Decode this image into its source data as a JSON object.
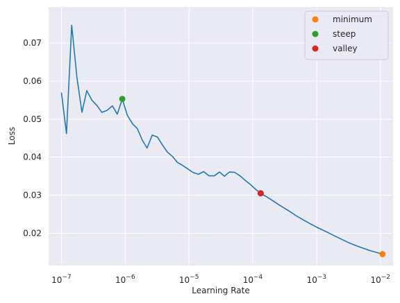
{
  "chart_data": {
    "type": "line",
    "xlabel": "Learning Rate",
    "ylabel": "Loss",
    "xscale": "log",
    "xlim": [
      6.3e-08,
      0.0158
    ],
    "ylim": [
      0.0115,
      0.0795
    ],
    "grid": true,
    "background": "#eaeaf2",
    "line_color": "#1f77b4",
    "x_ticks": [
      {
        "value": 1e-07,
        "base": "10",
        "exp": "−7"
      },
      {
        "value": 1e-06,
        "base": "10",
        "exp": "−6"
      },
      {
        "value": 1e-05,
        "base": "10",
        "exp": "−5"
      },
      {
        "value": 0.0001,
        "base": "10",
        "exp": "−4"
      },
      {
        "value": 0.001,
        "base": "10",
        "exp": "−3"
      },
      {
        "value": 0.01,
        "base": "10",
        "exp": "−2"
      }
    ],
    "y_ticks": [
      {
        "value": 0.02,
        "label": "0.02"
      },
      {
        "value": 0.03,
        "label": "0.03"
      },
      {
        "value": 0.04,
        "label": "0.04"
      },
      {
        "value": 0.05,
        "label": "0.05"
      },
      {
        "value": 0.06,
        "label": "0.06"
      },
      {
        "value": 0.07,
        "label": "0.07"
      }
    ],
    "series": [
      {
        "points": [
          [
            1e-07,
            0.057
          ],
          [
            1.2e-07,
            0.0462
          ],
          [
            1.45e-07,
            0.0747
          ],
          [
            1.75e-07,
            0.061
          ],
          [
            2.1e-07,
            0.0518
          ],
          [
            2.5e-07,
            0.0575
          ],
          [
            3e-07,
            0.055
          ],
          [
            3.6e-07,
            0.0536
          ],
          [
            4.3e-07,
            0.0518
          ],
          [
            5.2e-07,
            0.0523
          ],
          [
            6.3e-07,
            0.0535
          ],
          [
            7.5e-07,
            0.0513
          ],
          [
            9e-07,
            0.0553
          ],
          [
            1.08e-06,
            0.051
          ],
          [
            1.3e-06,
            0.0488
          ],
          [
            1.55e-06,
            0.0475
          ],
          [
            1.85e-06,
            0.0445
          ],
          [
            2.2e-06,
            0.0424
          ],
          [
            2.65e-06,
            0.0458
          ],
          [
            3.2e-06,
            0.0453
          ],
          [
            3.8e-06,
            0.0433
          ],
          [
            4.6e-06,
            0.0413
          ],
          [
            5.5e-06,
            0.0402
          ],
          [
            6.6e-06,
            0.0386
          ],
          [
            8e-06,
            0.0378
          ],
          [
            9.6e-06,
            0.0369
          ],
          [
            1.15e-05,
            0.036
          ],
          [
            1.4e-05,
            0.0355
          ],
          [
            1.7e-05,
            0.0362
          ],
          [
            2.05e-05,
            0.0351
          ],
          [
            2.5e-05,
            0.0351
          ],
          [
            3e-05,
            0.0361
          ],
          [
            3.6e-05,
            0.035
          ],
          [
            4.3e-05,
            0.0361
          ],
          [
            5.2e-05,
            0.036
          ],
          [
            6.3e-05,
            0.0351
          ],
          [
            7.6e-05,
            0.0339
          ],
          [
            9.2e-05,
            0.0328
          ],
          [
            0.00011,
            0.0316
          ],
          [
            0.000133,
            0.0305
          ],
          [
            0.00018,
            0.0292
          ],
          [
            0.00025,
            0.0276
          ],
          [
            0.00035,
            0.0261
          ],
          [
            0.0005,
            0.0244
          ],
          [
            0.0007,
            0.023
          ],
          [
            0.001,
            0.0216
          ],
          [
            0.0015,
            0.0202
          ],
          [
            0.0022,
            0.0188
          ],
          [
            0.0032,
            0.0175
          ],
          [
            0.0047,
            0.0164
          ],
          [
            0.007,
            0.0154
          ],
          [
            0.0108,
            0.0145
          ]
        ]
      }
    ],
    "markers": [
      {
        "name": "minimum",
        "x": 0.0108,
        "y": 0.0145,
        "color": "#ff7f0e"
      },
      {
        "name": "steep",
        "x": 9e-07,
        "y": 0.0553,
        "color": "#2ca02c"
      },
      {
        "name": "valley",
        "x": 0.000133,
        "y": 0.0305,
        "color": "#d62728"
      }
    ],
    "legend": {
      "placement": "top-right",
      "entries": [
        {
          "label": "minimum",
          "color": "#ff7f0e"
        },
        {
          "label": "steep",
          "color": "#2ca02c"
        },
        {
          "label": "valley",
          "color": "#d62728"
        }
      ]
    }
  }
}
